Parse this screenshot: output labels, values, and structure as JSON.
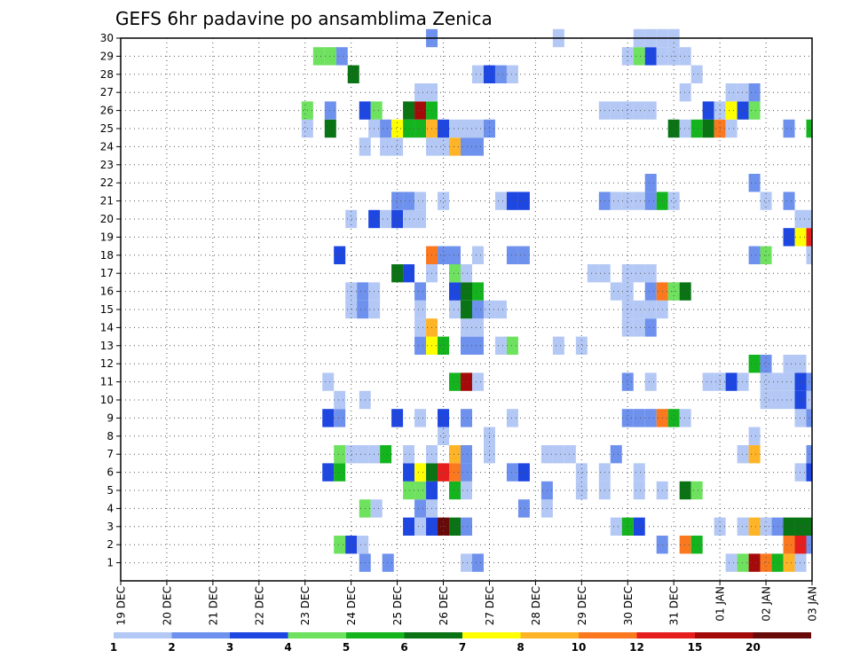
{
  "chart_data": {
    "type": "heatmap",
    "title": "GEFS 6hr padavine po ansamblima Zenica",
    "x_tick_labels": [
      "19 DEC",
      "20 DEC",
      "21 DEC",
      "22 DEC",
      "23 DEC",
      "24 DEC",
      "25 DEC",
      "26 DEC",
      "27 DEC",
      "28 DEC",
      "29 DEC",
      "30 DEC",
      "31 DEC",
      "01 JAN",
      "02 JAN",
      "03 JAN"
    ],
    "y_tick_labels": [
      "1",
      "2",
      "3",
      "4",
      "5",
      "6",
      "7",
      "8",
      "9",
      "10",
      "11",
      "12",
      "13",
      "14",
      "15",
      "16",
      "17",
      "18",
      "19",
      "20",
      "21",
      "22",
      "23",
      "24",
      "25",
      "26",
      "27",
      "28",
      "29",
      "30"
    ],
    "y_range": [
      0,
      30
    ],
    "x_range_days": [
      0,
      15
    ],
    "grid": true,
    "legend": "bottom",
    "colorbar": {
      "levels": [
        "1",
        "2",
        "3",
        "4",
        "5",
        "6",
        "7",
        "8",
        "10",
        "12",
        "15",
        "20"
      ],
      "colors": [
        "#b4c8f5",
        "#6e91ed",
        "#1e46e1",
        "#6ee15f",
        "#14b41e",
        "#0a7314",
        "#ffff00",
        "#ffb428",
        "#fa781e",
        "#e61e1e",
        "#a50a0a",
        "#690a0a"
      ]
    },
    "cells": [
      [
        1,
        5.3,
        2
      ],
      [
        1,
        5.8,
        2
      ],
      [
        1,
        7.5,
        1
      ],
      [
        1,
        7.75,
        2
      ],
      [
        1,
        13.25,
        1
      ],
      [
        1,
        13.5,
        4
      ],
      [
        1,
        13.75,
        11
      ],
      [
        1,
        14,
        9
      ],
      [
        1,
        14.25,
        5
      ],
      [
        1,
        14.5,
        8
      ],
      [
        1,
        14.75,
        1
      ],
      [
        2,
        4.75,
        4
      ],
      [
        2,
        5,
        3
      ],
      [
        2,
        5.25,
        1
      ],
      [
        2,
        11.75,
        2
      ],
      [
        2,
        12.25,
        9
      ],
      [
        2,
        12.5,
        5
      ],
      [
        2,
        14.5,
        9
      ],
      [
        2,
        14.75,
        10
      ],
      [
        2,
        15,
        2
      ],
      [
        3,
        6.25,
        3
      ],
      [
        3,
        6.5,
        1
      ],
      [
        3,
        6.75,
        3
      ],
      [
        3,
        7,
        12
      ],
      [
        3,
        7.25,
        6
      ],
      [
        3,
        7.5,
        2
      ],
      [
        3,
        10.75,
        1
      ],
      [
        3,
        11,
        5
      ],
      [
        3,
        11.25,
        3
      ],
      [
        3,
        13,
        1
      ],
      [
        3,
        13.5,
        1
      ],
      [
        3,
        13.75,
        8
      ],
      [
        3,
        14,
        1
      ],
      [
        3,
        14.25,
        2
      ],
      [
        3,
        14.5,
        6
      ],
      [
        3,
        14.75,
        6
      ],
      [
        3,
        15,
        6
      ],
      [
        4,
        5.3,
        4
      ],
      [
        4,
        5.55,
        1
      ],
      [
        4,
        6.5,
        2
      ],
      [
        4,
        6.75,
        1
      ],
      [
        4,
        8.75,
        2
      ],
      [
        4,
        9.25,
        1
      ],
      [
        5,
        6.25,
        4
      ],
      [
        5,
        6.5,
        4
      ],
      [
        5,
        6.75,
        3
      ],
      [
        5,
        7.25,
        5
      ],
      [
        5,
        7.5,
        1
      ],
      [
        5,
        9.25,
        2
      ],
      [
        5,
        10,
        1
      ],
      [
        5,
        10.5,
        1
      ],
      [
        5,
        11.25,
        1
      ],
      [
        5,
        11.75,
        1
      ],
      [
        5,
        12.25,
        6
      ],
      [
        5,
        12.5,
        4
      ],
      [
        6,
        4.5,
        3
      ],
      [
        6,
        4.75,
        5
      ],
      [
        6,
        6.25,
        3
      ],
      [
        6,
        6.5,
        7
      ],
      [
        6,
        6.75,
        6
      ],
      [
        6,
        7,
        10
      ],
      [
        6,
        7.25,
        9
      ],
      [
        6,
        7.5,
        2
      ],
      [
        6,
        8.5,
        2
      ],
      [
        6,
        8.75,
        3
      ],
      [
        6,
        10,
        1
      ],
      [
        6,
        10.5,
        1
      ],
      [
        6,
        11.25,
        1
      ],
      [
        6,
        14.75,
        1
      ],
      [
        6,
        15,
        3
      ],
      [
        7,
        4.75,
        4
      ],
      [
        7,
        5,
        1
      ],
      [
        7,
        5.25,
        1
      ],
      [
        7,
        5.5,
        1
      ],
      [
        7,
        5.75,
        5
      ],
      [
        7,
        6.25,
        1
      ],
      [
        7,
        6.75,
        1
      ],
      [
        7,
        7.25,
        8
      ],
      [
        7,
        7.5,
        2
      ],
      [
        7,
        8,
        1
      ],
      [
        7,
        9.25,
        1
      ],
      [
        7,
        9.5,
        1
      ],
      [
        7,
        9.75,
        1
      ],
      [
        7,
        10.75,
        2
      ],
      [
        7,
        13.5,
        1
      ],
      [
        7,
        13.75,
        8
      ],
      [
        7,
        15,
        2
      ],
      [
        8,
        7,
        1
      ],
      [
        8,
        8,
        1
      ],
      [
        8,
        13.75,
        1
      ],
      [
        9,
        4.5,
        3
      ],
      [
        9,
        4.75,
        2
      ],
      [
        9,
        6,
        3
      ],
      [
        9,
        6.5,
        1
      ],
      [
        9,
        7,
        3
      ],
      [
        9,
        7.5,
        2
      ],
      [
        9,
        8.5,
        1
      ],
      [
        9,
        11,
        2
      ],
      [
        9,
        11.25,
        2
      ],
      [
        9,
        11.5,
        2
      ],
      [
        9,
        11.75,
        9
      ],
      [
        9,
        12,
        5
      ],
      [
        9,
        12.25,
        1
      ],
      [
        9,
        14.75,
        1
      ],
      [
        9,
        15,
        2
      ],
      [
        10,
        4.75,
        1
      ],
      [
        10,
        5.3,
        1
      ],
      [
        10,
        14,
        1
      ],
      [
        10,
        14.25,
        1
      ],
      [
        10,
        14.5,
        1
      ],
      [
        10,
        14.75,
        3
      ],
      [
        10,
        15,
        1
      ],
      [
        11,
        4.5,
        1
      ],
      [
        11,
        7.25,
        5
      ],
      [
        11,
        7.5,
        11
      ],
      [
        11,
        7.75,
        1
      ],
      [
        11,
        11,
        2
      ],
      [
        11,
        11.5,
        1
      ],
      [
        11,
        12.75,
        1
      ],
      [
        11,
        13,
        1
      ],
      [
        11,
        13.25,
        3
      ],
      [
        11,
        13.5,
        1
      ],
      [
        11,
        14,
        1
      ],
      [
        11,
        14.25,
        1
      ],
      [
        11,
        14.5,
        1
      ],
      [
        11,
        14.75,
        3
      ],
      [
        11,
        15,
        2
      ],
      [
        12,
        13.75,
        5
      ],
      [
        12,
        14,
        2
      ],
      [
        12,
        14.5,
        1
      ],
      [
        12,
        14.75,
        1
      ],
      [
        13,
        6.5,
        2
      ],
      [
        13,
        6.75,
        7
      ],
      [
        13,
        7,
        5
      ],
      [
        13,
        7.5,
        2
      ],
      [
        13,
        7.75,
        2
      ],
      [
        13,
        8.25,
        1
      ],
      [
        13,
        8.5,
        4
      ],
      [
        13,
        9.5,
        1
      ],
      [
        13,
        10,
        1
      ],
      [
        14,
        6.5,
        1
      ],
      [
        14,
        6.75,
        8
      ],
      [
        14,
        7.5,
        1
      ],
      [
        14,
        7.75,
        1
      ],
      [
        14,
        11,
        1
      ],
      [
        14,
        11.25,
        1
      ],
      [
        14,
        11.5,
        2
      ],
      [
        15,
        5,
        1
      ],
      [
        15,
        5.25,
        2
      ],
      [
        15,
        5.5,
        1
      ],
      [
        15,
        6.5,
        1
      ],
      [
        15,
        7.25,
        1
      ],
      [
        15,
        7.5,
        6
      ],
      [
        15,
        7.75,
        2
      ],
      [
        15,
        8,
        1
      ],
      [
        15,
        8.25,
        1
      ],
      [
        15,
        11,
        1
      ],
      [
        15,
        11.25,
        1
      ],
      [
        15,
        11.5,
        1
      ],
      [
        15,
        11.75,
        1
      ],
      [
        16,
        5,
        1
      ],
      [
        16,
        5.25,
        2
      ],
      [
        16,
        5.5,
        1
      ],
      [
        16,
        6.5,
        2
      ],
      [
        16,
        7.25,
        3
      ],
      [
        16,
        7.5,
        6
      ],
      [
        16,
        7.75,
        5
      ],
      [
        16,
        10.75,
        1
      ],
      [
        16,
        11,
        1
      ],
      [
        16,
        11.5,
        2
      ],
      [
        16,
        11.75,
        9
      ],
      [
        16,
        12,
        4
      ],
      [
        16,
        12.25,
        6
      ],
      [
        17,
        6,
        6
      ],
      [
        17,
        6.25,
        3
      ],
      [
        17,
        6.75,
        1
      ],
      [
        17,
        7.25,
        4
      ],
      [
        17,
        7.5,
        1
      ],
      [
        17,
        10.25,
        1
      ],
      [
        17,
        10.5,
        1
      ],
      [
        17,
        11,
        1
      ],
      [
        17,
        11.25,
        1
      ],
      [
        17,
        11.5,
        1
      ],
      [
        18,
        4.75,
        3
      ],
      [
        18,
        6.75,
        9
      ],
      [
        18,
        7,
        2
      ],
      [
        18,
        7.25,
        2
      ],
      [
        18,
        7.75,
        1
      ],
      [
        18,
        8.5,
        2
      ],
      [
        18,
        8.75,
        2
      ],
      [
        18,
        13.75,
        2
      ],
      [
        18,
        14,
        4
      ],
      [
        18,
        15,
        1
      ],
      [
        19,
        14.5,
        3
      ],
      [
        19,
        14.75,
        7
      ],
      [
        19,
        15,
        10
      ],
      [
        20,
        5,
        1
      ],
      [
        20,
        5.5,
        3
      ],
      [
        20,
        5.75,
        1
      ],
      [
        20,
        6,
        3
      ],
      [
        20,
        6.25,
        1
      ],
      [
        20,
        6.5,
        1
      ],
      [
        20,
        14.75,
        1
      ],
      [
        20,
        15,
        1
      ],
      [
        21,
        6,
        2
      ],
      [
        21,
        6.25,
        2
      ],
      [
        21,
        6.5,
        1
      ],
      [
        21,
        7,
        1
      ],
      [
        21,
        8.25,
        1
      ],
      [
        21,
        8.5,
        3
      ],
      [
        21,
        8.75,
        3
      ],
      [
        21,
        10.5,
        2
      ],
      [
        21,
        10.75,
        1
      ],
      [
        21,
        11,
        1
      ],
      [
        21,
        11.25,
        1
      ],
      [
        21,
        11.5,
        2
      ],
      [
        21,
        11.75,
        5
      ],
      [
        21,
        12,
        1
      ],
      [
        21,
        14,
        1
      ],
      [
        21,
        14.5,
        2
      ],
      [
        22,
        11.5,
        2
      ],
      [
        22,
        13.75,
        2
      ],
      [
        24,
        5.3,
        1
      ],
      [
        24,
        5.75,
        1
      ],
      [
        24,
        6,
        1
      ],
      [
        24,
        6.75,
        1
      ],
      [
        24,
        7,
        1
      ],
      [
        24,
        7.25,
        8
      ],
      [
        24,
        7.5,
        2
      ],
      [
        24,
        7.75,
        2
      ],
      [
        25,
        4.05,
        1
      ],
      [
        25,
        4.55,
        6
      ],
      [
        25,
        5.5,
        1
      ],
      [
        25,
        5.75,
        2
      ],
      [
        25,
        6,
        7
      ],
      [
        25,
        6.25,
        5
      ],
      [
        25,
        6.5,
        5
      ],
      [
        25,
        6.75,
        8
      ],
      [
        25,
        7,
        3
      ],
      [
        25,
        7.25,
        1
      ],
      [
        25,
        7.5,
        1
      ],
      [
        25,
        7.75,
        1
      ],
      [
        25,
        8,
        2
      ],
      [
        25,
        12,
        6
      ],
      [
        25,
        12.25,
        1
      ],
      [
        25,
        12.5,
        5
      ],
      [
        25,
        12.75,
        6
      ],
      [
        25,
        13,
        9
      ],
      [
        25,
        13.25,
        1
      ],
      [
        25,
        14.5,
        2
      ],
      [
        25,
        15,
        5
      ],
      [
        25,
        15.25,
        6
      ],
      [
        26,
        4.05,
        4
      ],
      [
        26,
        4.55,
        2
      ],
      [
        26,
        5.3,
        3
      ],
      [
        26,
        5.55,
        4
      ],
      [
        26,
        6.25,
        6
      ],
      [
        26,
        6.5,
        11
      ],
      [
        26,
        6.75,
        5
      ],
      [
        26,
        10.5,
        1
      ],
      [
        26,
        10.75,
        1
      ],
      [
        26,
        11,
        1
      ],
      [
        26,
        11.25,
        1
      ],
      [
        26,
        11.5,
        1
      ],
      [
        26,
        12.75,
        3
      ],
      [
        26,
        13,
        1
      ],
      [
        26,
        13.25,
        7
      ],
      [
        26,
        13.5,
        3
      ],
      [
        26,
        13.75,
        4
      ],
      [
        27,
        6.5,
        1
      ],
      [
        27,
        6.75,
        1
      ],
      [
        27,
        12.25,
        1
      ],
      [
        27,
        13.25,
        1
      ],
      [
        27,
        13.5,
        1
      ],
      [
        27,
        13.75,
        2
      ],
      [
        28,
        5.05,
        6
      ],
      [
        28,
        7.75,
        1
      ],
      [
        28,
        8,
        3
      ],
      [
        28,
        8.25,
        2
      ],
      [
        28,
        8.5,
        1
      ],
      [
        28,
        12.5,
        1
      ],
      [
        29,
        4.3,
        4
      ],
      [
        29,
        4.55,
        4
      ],
      [
        29,
        4.8,
        2
      ],
      [
        29,
        11,
        1
      ],
      [
        29,
        11.25,
        4
      ],
      [
        29,
        11.5,
        3
      ],
      [
        29,
        11.75,
        1
      ],
      [
        29,
        12,
        1
      ],
      [
        29,
        12.25,
        1
      ],
      [
        30,
        6.75,
        2
      ],
      [
        30,
        9.5,
        1
      ],
      [
        30,
        11.25,
        1
      ],
      [
        30,
        11.5,
        1
      ],
      [
        30,
        11.75,
        1
      ],
      [
        30,
        12,
        1
      ]
    ]
  }
}
